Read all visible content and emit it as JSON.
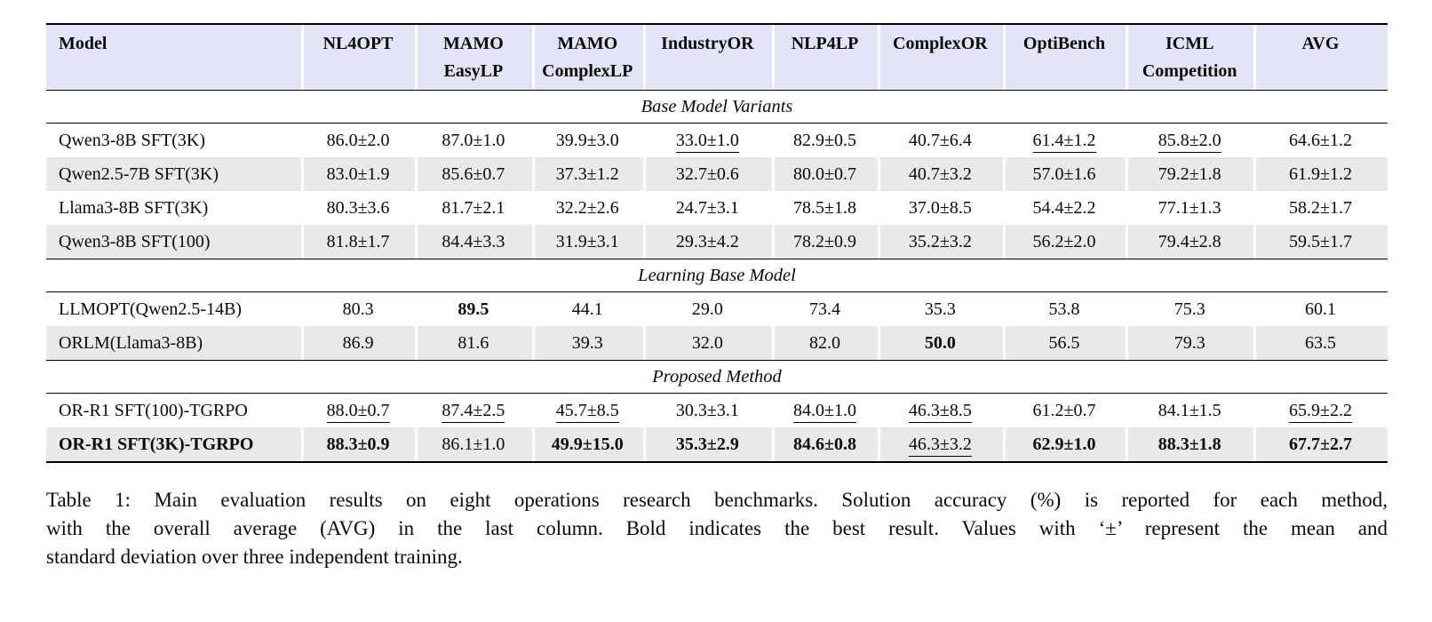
{
  "colors": {
    "header_bg": "#e4e4f7",
    "row_shade_bg": "#e9e9e9",
    "rule_color": "#000000"
  },
  "table": {
    "columns": [
      {
        "line1": "Model",
        "line2": ""
      },
      {
        "line1": "NL4OPT",
        "line2": ""
      },
      {
        "line1": "MAMO",
        "line2": "EasyLP"
      },
      {
        "line1": "MAMO",
        "line2": "ComplexLP"
      },
      {
        "line1": "IndustryOR",
        "line2": ""
      },
      {
        "line1": "NLP4LP",
        "line2": ""
      },
      {
        "line1": "ComplexOR",
        "line2": ""
      },
      {
        "line1": "OptiBench",
        "line2": ""
      },
      {
        "line1": "ICML",
        "line2": "Competition"
      },
      {
        "line1": "AVG",
        "line2": ""
      }
    ],
    "sections": [
      {
        "title": "Base Model Variants",
        "rows": [
          {
            "model": "Qwen3-8B SFT(3K)",
            "bold": false,
            "shaded": false,
            "cells": [
              [
                "86.0±2.0",
                ""
              ],
              [
                "87.0±1.0",
                ""
              ],
              [
                "39.9±3.0",
                ""
              ],
              [
                "33.0±1.0",
                "u"
              ],
              [
                "82.9±0.5",
                ""
              ],
              [
                "40.7±6.4",
                ""
              ],
              [
                "61.4±1.2",
                "u"
              ],
              [
                "85.8±2.0",
                "u"
              ],
              [
                "64.6±1.2",
                ""
              ]
            ]
          },
          {
            "model": "Qwen2.5-7B SFT(3K)",
            "bold": false,
            "shaded": true,
            "cells": [
              [
                "83.0±1.9",
                ""
              ],
              [
                "85.6±0.7",
                ""
              ],
              [
                "37.3±1.2",
                ""
              ],
              [
                "32.7±0.6",
                ""
              ],
              [
                "80.0±0.7",
                ""
              ],
              [
                "40.7±3.2",
                ""
              ],
              [
                "57.0±1.6",
                ""
              ],
              [
                "79.2±1.8",
                ""
              ],
              [
                "61.9±1.2",
                ""
              ]
            ]
          },
          {
            "model": "Llama3-8B SFT(3K)",
            "bold": false,
            "shaded": false,
            "cells": [
              [
                "80.3±3.6",
                ""
              ],
              [
                "81.7±2.1",
                ""
              ],
              [
                "32.2±2.6",
                ""
              ],
              [
                "24.7±3.1",
                ""
              ],
              [
                "78.5±1.8",
                ""
              ],
              [
                "37.0±8.5",
                ""
              ],
              [
                "54.4±2.2",
                ""
              ],
              [
                "77.1±1.3",
                ""
              ],
              [
                "58.2±1.7",
                ""
              ]
            ]
          },
          {
            "model": "Qwen3-8B SFT(100)",
            "bold": false,
            "shaded": true,
            "cells": [
              [
                "81.8±1.7",
                ""
              ],
              [
                "84.4±3.3",
                ""
              ],
              [
                "31.9±3.1",
                ""
              ],
              [
                "29.3±4.2",
                ""
              ],
              [
                "78.2±0.9",
                ""
              ],
              [
                "35.2±3.2",
                ""
              ],
              [
                "56.2±2.0",
                ""
              ],
              [
                "79.4±2.8",
                ""
              ],
              [
                "59.5±1.7",
                ""
              ]
            ]
          }
        ]
      },
      {
        "title": "Learning Base Model",
        "rows": [
          {
            "model": "LLMOPT(Qwen2.5-14B)",
            "bold": false,
            "shaded": false,
            "cells": [
              [
                "80.3",
                ""
              ],
              [
                "89.5",
                "b"
              ],
              [
                "44.1",
                ""
              ],
              [
                "29.0",
                ""
              ],
              [
                "73.4",
                ""
              ],
              [
                "35.3",
                ""
              ],
              [
                "53.8",
                ""
              ],
              [
                "75.3",
                ""
              ],
              [
                "60.1",
                ""
              ]
            ]
          },
          {
            "model": "ORLM(Llama3-8B)",
            "bold": false,
            "shaded": true,
            "cells": [
              [
                "86.9",
                ""
              ],
              [
                "81.6",
                ""
              ],
              [
                "39.3",
                ""
              ],
              [
                "32.0",
                ""
              ],
              [
                "82.0",
                ""
              ],
              [
                "50.0",
                "b"
              ],
              [
                "56.5",
                ""
              ],
              [
                "79.3",
                ""
              ],
              [
                "63.5",
                ""
              ]
            ]
          }
        ]
      },
      {
        "title": "Proposed Method",
        "rows": [
          {
            "model": "OR-R1 SFT(100)-TGRPO",
            "bold": false,
            "shaded": false,
            "cells": [
              [
                "88.0±0.7",
                "u"
              ],
              [
                "87.4±2.5",
                "u"
              ],
              [
                "45.7±8.5",
                "u"
              ],
              [
                "30.3±3.1",
                ""
              ],
              [
                "84.0±1.0",
                "u"
              ],
              [
                "46.3±8.5",
                "u"
              ],
              [
                "61.2±0.7",
                ""
              ],
              [
                "84.1±1.5",
                ""
              ],
              [
                "65.9±2.2",
                "u"
              ]
            ]
          },
          {
            "model": "OR-R1 SFT(3K)-TGRPO",
            "bold": true,
            "shaded": true,
            "cells": [
              [
                "88.3±0.9",
                "b"
              ],
              [
                "86.1±1.0",
                ""
              ],
              [
                "49.9±15.0",
                "b"
              ],
              [
                "35.3±2.9",
                "b"
              ],
              [
                "84.6±0.8",
                "b"
              ],
              [
                "46.3±3.2",
                "u"
              ],
              [
                "62.9±1.0",
                "b"
              ],
              [
                "88.3±1.8",
                "b"
              ],
              [
                "67.7±2.7",
                "b"
              ]
            ]
          }
        ]
      }
    ]
  },
  "caption": {
    "line1": "Table 1: Main evaluation results on eight operations research benchmarks. Solution accuracy (%) is reported for each method,",
    "line2": "with the overall average (AVG) in the last column. Bold indicates the best result. Values with ‘±’ represent the mean and",
    "line3": "standard deviation over three independent training."
  }
}
